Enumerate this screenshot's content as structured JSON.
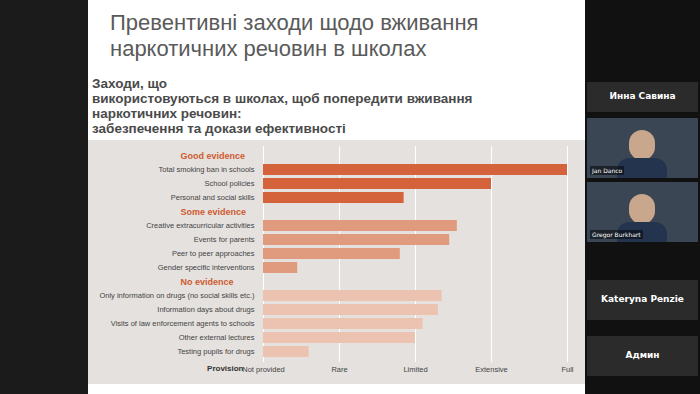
{
  "slide": {
    "title": "Превентивні заходи щодо вживання наркотичних речовин в школах"
  },
  "participants": [
    "Инна Савина",
    "Jan Danco",
    "Gregor Burkhart",
    "Kateryna Penzie",
    "Админ"
  ],
  "chart_data": {
    "type": "bar",
    "orientation": "horizontal",
    "title": "Заходи, що\nвикористовуються в школах, щоб попередити вживання\n наркотичних речовин:\nзабезпечення та докази ефективності",
    "x_label": "Provision",
    "xlim": [
      0,
      4
    ],
    "xticks": [
      {
        "value": 0,
        "label": "Not provided"
      },
      {
        "value": 1,
        "label": "Rare"
      },
      {
        "value": 2,
        "label": "Limited"
      },
      {
        "value": 3,
        "label": "Extensive"
      },
      {
        "value": 4,
        "label": "Full"
      }
    ],
    "grid": true,
    "groups": [
      {
        "name": "Good evidence",
        "color": "#d4633c",
        "categories": [
          "Total smoking ban in schools",
          "School policies",
          "Personal and social skills"
        ],
        "values": [
          4,
          3.0,
          1.85
        ]
      },
      {
        "name": "Some evidence",
        "color": "#e09a7e",
        "categories": [
          "Creative extracurricular activities",
          "Events for parents",
          "Peer to peer approaches",
          "Gender specific interventions"
        ],
        "values": [
          2.55,
          2.45,
          1.8,
          0.45
        ]
      },
      {
        "name": "No evidence",
        "color": "#ebc3b0",
        "categories": [
          "Only information on drugs (no social skills etc.)",
          "Information days about drugs",
          "Visits of law enforcement agents to schools",
          "Other external lectures",
          "Testing pupils for drugs"
        ],
        "values": [
          2.35,
          2.3,
          2.1,
          2.0,
          0.6
        ]
      }
    ]
  }
}
